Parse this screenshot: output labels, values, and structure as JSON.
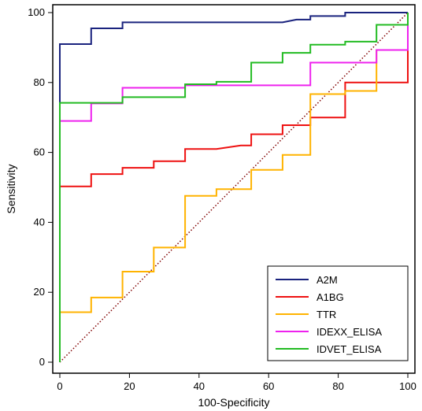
{
  "chart_data": {
    "type": "line",
    "title": "",
    "xlabel": "100-Specificity",
    "ylabel": "Sensitivity",
    "xlim": [
      0,
      100
    ],
    "ylim": [
      0,
      100
    ],
    "xticks": [
      "0",
      "20",
      "40",
      "60",
      "80",
      "100"
    ],
    "yticks": [
      "0",
      "20",
      "40",
      "60",
      "80",
      "100"
    ],
    "grid": false,
    "legend_position": "bottom-right",
    "diagonal_reference": {
      "from": [
        0,
        0
      ],
      "to": [
        100,
        100
      ],
      "color": "#800000",
      "style": "dotted"
    },
    "series": [
      {
        "name": "A2M",
        "color": "#1a237e",
        "step": true,
        "points": [
          [
            0,
            0
          ],
          [
            0,
            91
          ],
          [
            9,
            91
          ],
          [
            9,
            95.5
          ],
          [
            18,
            95.5
          ],
          [
            18,
            97.2
          ],
          [
            64,
            97.2
          ],
          [
            68,
            98
          ],
          [
            72,
            98
          ],
          [
            72,
            99
          ],
          [
            82,
            99
          ],
          [
            82,
            100
          ],
          [
            100,
            100
          ]
        ]
      },
      {
        "name": "A1BG",
        "color": "#ee1111",
        "step": true,
        "points": [
          [
            0,
            0
          ],
          [
            0,
            50.3
          ],
          [
            9,
            50.3
          ],
          [
            9,
            53.8
          ],
          [
            18,
            53.8
          ],
          [
            18,
            55.6
          ],
          [
            27,
            55.6
          ],
          [
            27,
            57.5
          ],
          [
            36,
            57.5
          ],
          [
            36,
            61
          ],
          [
            45,
            61
          ],
          [
            52,
            62
          ],
          [
            55,
            62
          ],
          [
            55,
            65.2
          ],
          [
            64,
            65.2
          ],
          [
            64,
            67.8
          ],
          [
            72,
            67.8
          ],
          [
            72,
            70
          ],
          [
            82,
            70
          ],
          [
            82,
            80
          ],
          [
            100,
            80
          ],
          [
            100,
            100
          ]
        ]
      },
      {
        "name": "TTR",
        "color": "#ffb300",
        "step": true,
        "points": [
          [
            0,
            0
          ],
          [
            0,
            14.3
          ],
          [
            9,
            14.3
          ],
          [
            9,
            18.5
          ],
          [
            18,
            18.5
          ],
          [
            18,
            25.9
          ],
          [
            27,
            25.9
          ],
          [
            27,
            32.8
          ],
          [
            36,
            32.8
          ],
          [
            36,
            47.6
          ],
          [
            45,
            47.6
          ],
          [
            45,
            49.5
          ],
          [
            55,
            49.5
          ],
          [
            55,
            55
          ],
          [
            64,
            55
          ],
          [
            64,
            59.3
          ],
          [
            72,
            59.3
          ],
          [
            72,
            76.7
          ],
          [
            82,
            76.7
          ],
          [
            82,
            77.6
          ],
          [
            91,
            77.6
          ],
          [
            91,
            89.3
          ],
          [
            100,
            89.3
          ]
        ]
      },
      {
        "name": "IDEXX_ELISA",
        "color": "#ee22ee",
        "step": true,
        "points": [
          [
            0,
            0
          ],
          [
            0,
            69
          ],
          [
            9,
            69
          ],
          [
            9,
            74
          ],
          [
            18,
            74
          ],
          [
            18,
            78.5
          ],
          [
            36,
            78.5
          ],
          [
            36,
            79.2
          ],
          [
            72,
            79.2
          ],
          [
            72,
            85.7
          ],
          [
            91,
            85.7
          ],
          [
            91,
            89.3
          ],
          [
            100,
            89.3
          ],
          [
            100,
            96.5
          ]
        ]
      },
      {
        "name": "IDVET_ELISA",
        "color": "#22bb22",
        "step": true,
        "points": [
          [
            0,
            0
          ],
          [
            0,
            74.2
          ],
          [
            18,
            74.2
          ],
          [
            18,
            75.8
          ],
          [
            36,
            75.8
          ],
          [
            36,
            79.5
          ],
          [
            45,
            79.5
          ],
          [
            45,
            80.2
          ],
          [
            55,
            80.2
          ],
          [
            55,
            85.7
          ],
          [
            64,
            85.7
          ],
          [
            64,
            88.5
          ],
          [
            72,
            88.5
          ],
          [
            72,
            90.8
          ],
          [
            82,
            90.8
          ],
          [
            82,
            91.7
          ],
          [
            91,
            91.7
          ],
          [
            91,
            96.5
          ],
          [
            100,
            96.5
          ],
          [
            100,
            100
          ]
        ]
      }
    ]
  }
}
